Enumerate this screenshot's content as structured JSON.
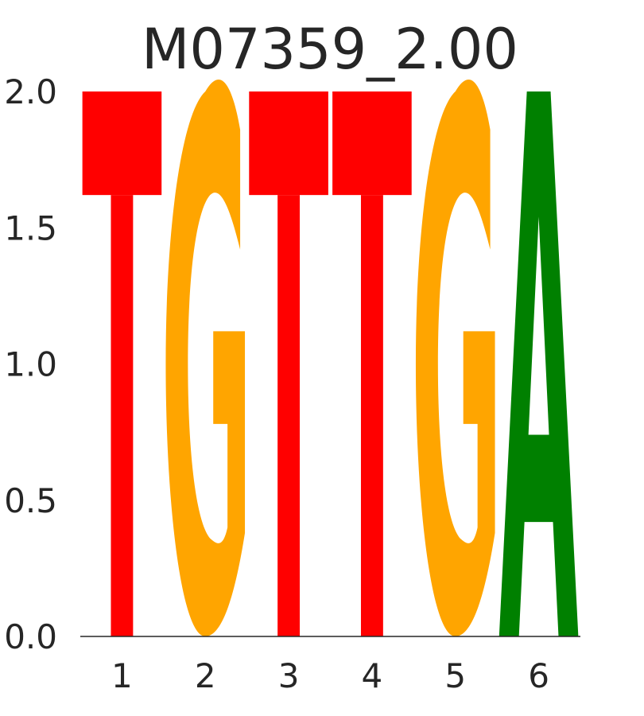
{
  "chart_data": {
    "type": "sequence-logo",
    "title": "M07359_2.00",
    "xlabel": "",
    "ylabel": "",
    "ylim": [
      0,
      2
    ],
    "yticks": [
      "0.0",
      "0.5",
      "1.0",
      "1.5",
      "2.0"
    ],
    "positions": [
      "1",
      "2",
      "3",
      "4",
      "5",
      "6"
    ],
    "letters": [
      {
        "position": "1",
        "letter": "T",
        "bits": 2.0
      },
      {
        "position": "2",
        "letter": "G",
        "bits": 2.0
      },
      {
        "position": "3",
        "letter": "T",
        "bits": 2.0
      },
      {
        "position": "4",
        "letter": "T",
        "bits": 2.0
      },
      {
        "position": "5",
        "letter": "G",
        "bits": 2.0
      },
      {
        "position": "6",
        "letter": "A",
        "bits": 2.0
      }
    ],
    "colors": {
      "A": "#008000",
      "C": "#0000ff",
      "G": "#ffa500",
      "T": "#ff0000"
    },
    "grid": false
  }
}
